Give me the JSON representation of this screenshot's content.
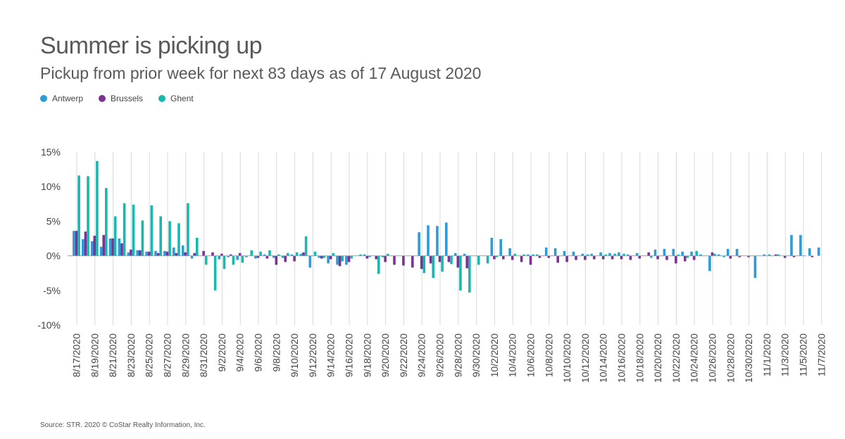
{
  "chart_data": {
    "type": "bar",
    "title": "Summer is picking up",
    "subtitle": "Pickup from prior week for next 83 days as of 17 August 2020",
    "source": "Source: STR. 2020 © CoStar Realty Information, Inc.",
    "ylim": [
      -10,
      15
    ],
    "yticks": [
      -10,
      -5,
      0,
      5,
      10,
      15
    ],
    "ytick_labels": [
      "-10%",
      "-5%",
      "0%",
      "5%",
      "10%",
      "15%"
    ],
    "legend_position": "top-left",
    "grid": "vertical",
    "colors": {
      "Antwerp": "#2b9cd8",
      "Brussels": "#7b3294",
      "Ghent": "#19b7b0",
      "grid": "#d9d9d9",
      "baseline": "#9e9e9e"
    },
    "x_tick_labels": [
      "8/17/2020",
      "8/19/2020",
      "8/21/2020",
      "8/23/2020",
      "8/25/2020",
      "8/27/2020",
      "8/29/2020",
      "8/31/2020",
      "9/2/2020",
      "9/4/2020",
      "9/6/2020",
      "9/8/2020",
      "9/10/2020",
      "9/12/2020",
      "9/14/2020",
      "9/16/2020",
      "9/18/2020",
      "9/20/2020",
      "9/22/2020",
      "9/24/2020",
      "9/26/2020",
      "9/28/2020",
      "9/30/2020",
      "10/2/2020",
      "10/4/2020",
      "10/6/2020",
      "10/8/2020",
      "10/10/2020",
      "10/12/2020",
      "10/14/2020",
      "10/16/2020",
      "10/18/2020",
      "10/20/2020",
      "10/22/2020",
      "10/24/2020",
      "10/26/2020",
      "10/28/2020",
      "10/30/2020",
      "11/1/2020",
      "11/3/2020",
      "11/5/2020",
      "11/7/2020"
    ],
    "x": [
      "8/17/2020",
      "8/18/2020",
      "8/19/2020",
      "8/20/2020",
      "8/21/2020",
      "8/22/2020",
      "8/23/2020",
      "8/24/2020",
      "8/25/2020",
      "8/26/2020",
      "8/27/2020",
      "8/28/2020",
      "8/29/2020",
      "8/30/2020",
      "8/31/2020",
      "9/1/2020",
      "9/2/2020",
      "9/3/2020",
      "9/4/2020",
      "9/5/2020",
      "9/6/2020",
      "9/7/2020",
      "9/8/2020",
      "9/9/2020",
      "9/10/2020",
      "9/11/2020",
      "9/12/2020",
      "9/13/2020",
      "9/14/2020",
      "9/15/2020",
      "9/16/2020",
      "9/17/2020",
      "9/18/2020",
      "9/19/2020",
      "9/20/2020",
      "9/21/2020",
      "9/22/2020",
      "9/23/2020",
      "9/24/2020",
      "9/25/2020",
      "9/26/2020",
      "9/27/2020",
      "9/28/2020",
      "9/29/2020",
      "9/30/2020",
      "10/1/2020",
      "10/2/2020",
      "10/3/2020",
      "10/4/2020",
      "10/5/2020",
      "10/6/2020",
      "10/7/2020",
      "10/8/2020",
      "10/9/2020",
      "10/10/2020",
      "10/11/2020",
      "10/12/2020",
      "10/13/2020",
      "10/14/2020",
      "10/15/2020",
      "10/16/2020",
      "10/17/2020",
      "10/18/2020",
      "10/19/2020",
      "10/20/2020",
      "10/21/2020",
      "10/22/2020",
      "10/23/2020",
      "10/24/2020",
      "10/25/2020",
      "10/26/2020",
      "10/27/2020",
      "10/28/2020",
      "10/29/2020",
      "10/30/2020",
      "10/31/2020",
      "11/1/2020",
      "11/2/2020",
      "11/3/2020",
      "11/4/2020",
      "11/5/2020",
      "11/6/2020",
      "11/7/2020"
    ],
    "series": [
      {
        "name": "Antwerp",
        "values": [
          3.6,
          2.4,
          2.1,
          1.3,
          2.5,
          2.5,
          0.5,
          0.8,
          0.6,
          0.7,
          0.7,
          1.2,
          1.5,
          -0.4,
          0,
          0,
          -0.5,
          -0.2,
          -0.6,
          -0.2,
          -0.4,
          0.2,
          -0.3,
          -0.3,
          0.2,
          0.3,
          -1.7,
          -0.3,
          -1.1,
          -1.3,
          -1.3,
          0,
          0.2,
          0,
          -0.2,
          0,
          0,
          0,
          3.4,
          4.4,
          4.3,
          4.8,
          0.4,
          0.3,
          0,
          0,
          2.6,
          2.4,
          1.1,
          0,
          0.2,
          0.2,
          1.2,
          1.1,
          0.7,
          0.6,
          0.3,
          0.3,
          0.5,
          0.4,
          0.5,
          0.2,
          0.4,
          0,
          0.9,
          1,
          1,
          0.6,
          0.6,
          0.2,
          -2.2,
          0.2,
          1,
          1,
          0,
          -3.2,
          0.2,
          0,
          0,
          3,
          3,
          1.1,
          1.2
        ]
      },
      {
        "name": "Brussels",
        "values": [
          3.6,
          3.5,
          2.9,
          3,
          2.5,
          1.8,
          0.9,
          0.8,
          0.6,
          0.4,
          0.6,
          0.4,
          0.5,
          0.4,
          0.7,
          0.5,
          0.3,
          0.2,
          0.4,
          0,
          -0.3,
          -0.4,
          -1.3,
          -0.9,
          -0.8,
          0.5,
          0,
          -0.4,
          -0.5,
          -1.5,
          -0.9,
          0,
          -0.4,
          -0.5,
          -0.9,
          -1.3,
          -1.4,
          -1.7,
          -1.9,
          -1.1,
          -0.9,
          -0.9,
          -1.7,
          -1.8,
          0,
          0,
          -0.5,
          -0.5,
          -0.6,
          -0.9,
          -1.3,
          -0.3,
          -0.3,
          -1,
          -0.9,
          -0.6,
          -0.6,
          -0.5,
          -0.5,
          -0.5,
          -0.5,
          -0.6,
          -0.4,
          0.5,
          -0.5,
          -0.6,
          -1.1,
          -0.8,
          -0.6,
          0,
          0.5,
          0,
          -0.4,
          -0.2,
          -0.2,
          0,
          0,
          0.2,
          -0.3,
          -0.2,
          0,
          -0.2,
          0
        ]
      },
      {
        "name": "Ghent",
        "values": [
          11.6,
          11.5,
          13.7,
          9.8,
          5.7,
          7.6,
          7.4,
          5.1,
          7.3,
          5.7,
          5,
          4.7,
          7.6,
          2.6,
          -1.3,
          -5,
          -1.9,
          -1.3,
          -1,
          0.8,
          0.6,
          0.8,
          0.2,
          0.4,
          0.5,
          2.8,
          0.6,
          -0.3,
          0.4,
          -0.8,
          -0.4,
          0.2,
          -0.2,
          -2.6,
          0.3,
          0,
          0,
          0,
          -2.5,
          -3.2,
          -2.3,
          -1.2,
          -5,
          -5.3,
          -1.3,
          -1.1,
          -0.2,
          0,
          0.3,
          0.2,
          0.2,
          0,
          0,
          0,
          0,
          0,
          0.2,
          0,
          0.2,
          0.3,
          0.3,
          0,
          0,
          -0.3,
          0,
          0,
          0.2,
          -0.3,
          0.7,
          0,
          0.3,
          -0.2,
          0,
          0,
          0,
          0,
          0.2,
          0.2,
          0,
          0,
          0,
          0,
          0
        ]
      }
    ]
  }
}
